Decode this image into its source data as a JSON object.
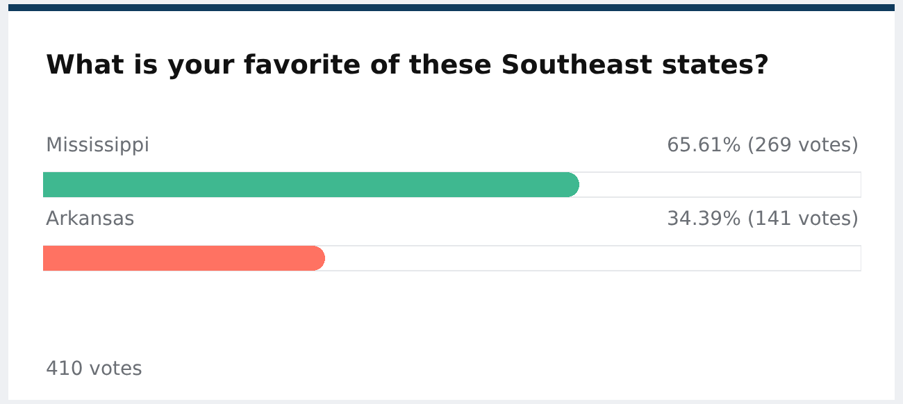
{
  "chart_data": {
    "type": "bar",
    "orientation": "horizontal",
    "title": "What is your favorite of these Southeast states?",
    "categories": [
      "Mississippi",
      "Arkansas"
    ],
    "values": [
      65.61,
      34.39
    ],
    "value_labels": [
      "65.61% (269 votes)",
      "34.39% (141 votes)"
    ],
    "colors": [
      "#3fb890",
      "#ff7262"
    ],
    "xlim": [
      0,
      100
    ],
    "annotations": [
      "410 votes"
    ]
  }
}
